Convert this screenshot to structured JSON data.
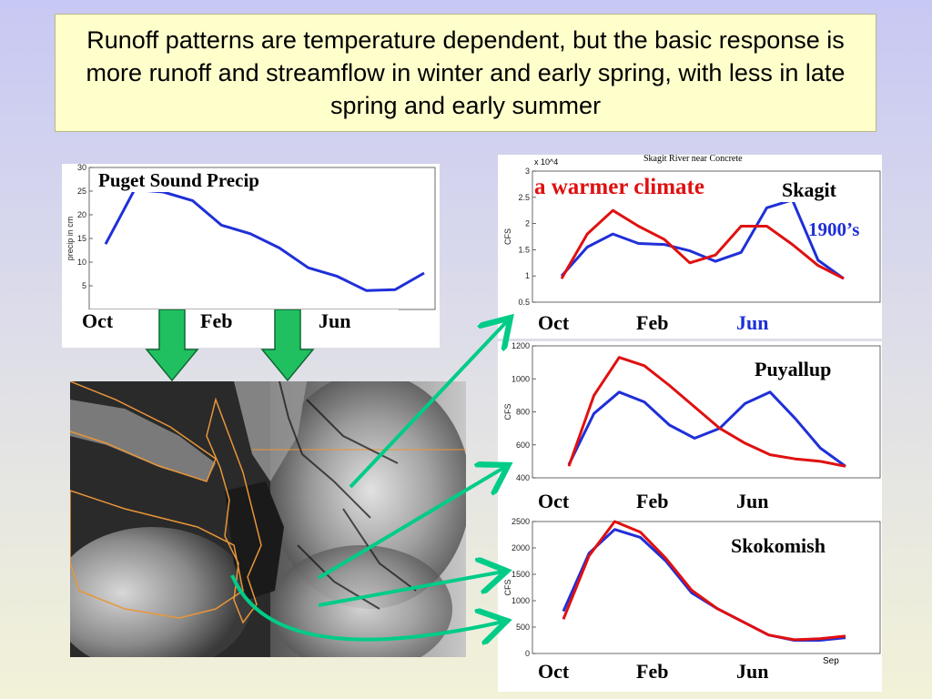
{
  "slide": {
    "title": "Runoff patterns are temperature dependent, but the basic response is more runoff and streamflow in winter and early spring, with less in late spring and early summer"
  },
  "colors": {
    "blue": "#1f2fd8",
    "red": "#e01010",
    "green_arrow": "#00cc88",
    "title_bg": "#ffffcc"
  },
  "chart_data": [
    {
      "type": "line",
      "title": "Puget Sound Precip",
      "ylabel": "precip in cm",
      "ylim": [
        0,
        30
      ],
      "yticks": [
        "5",
        "10",
        "15",
        "20",
        "25",
        "30"
      ],
      "month_labels": [
        "Oct",
        "Feb",
        "Jun"
      ],
      "x": [
        0,
        1,
        2,
        3,
        4,
        5,
        6,
        7,
        8,
        9,
        10,
        11
      ],
      "series": [
        {
          "color": "blue",
          "values": [
            13.8,
            25.3,
            24.8,
            23.0,
            17.8,
            16.0,
            13.0,
            8.8,
            7.0,
            4.0,
            4.2,
            7.7
          ]
        }
      ]
    },
    {
      "type": "line",
      "title": "Skagit River near Concrete",
      "ylabel": "CFS",
      "y_multiplier": "x 10^4",
      "ylim": [
        0.5,
        3
      ],
      "yticks": [
        "0.5",
        "1",
        "1.5",
        "2",
        "2.5",
        "3"
      ],
      "annotation_warmer": "a warmer climate",
      "annotation_1900s": "1900’s",
      "river_label": "Skagit",
      "month_labels": [
        "Oct",
        "Feb",
        "Jun"
      ],
      "x": [
        0,
        1,
        2,
        3,
        4,
        5,
        6,
        7,
        8,
        9,
        10,
        11
      ],
      "series": [
        {
          "color": "blue",
          "name": "1900’s",
          "values": [
            1.0,
            1.55,
            1.8,
            1.62,
            1.6,
            1.48,
            1.28,
            1.45,
            2.3,
            2.45,
            1.3,
            0.95
          ]
        },
        {
          "color": "red",
          "name": "a warmer climate",
          "values": [
            0.95,
            1.8,
            2.25,
            1.95,
            1.7,
            1.25,
            1.4,
            1.95,
            1.95,
            1.6,
            1.2,
            0.95
          ]
        }
      ]
    },
    {
      "type": "line",
      "title": "",
      "river_label": "Puyallup",
      "ylabel": "CFS",
      "ylim": [
        400,
        1200
      ],
      "yticks": [
        "400",
        "600",
        "800",
        "1000",
        "1200"
      ],
      "month_labels": [
        "Oct",
        "Feb",
        "Jun"
      ],
      "x": [
        0,
        1,
        2,
        3,
        4,
        5,
        6,
        7,
        8,
        9,
        10,
        11
      ],
      "series": [
        {
          "color": "blue",
          "values": [
            480,
            790,
            920,
            860,
            720,
            640,
            700,
            850,
            920,
            760,
            580,
            470
          ]
        },
        {
          "color": "red",
          "values": [
            470,
            900,
            1130,
            1080,
            960,
            830,
            700,
            610,
            540,
            515,
            500,
            470
          ]
        }
      ]
    },
    {
      "type": "line",
      "title": "",
      "river_label": "Skokomish",
      "ylabel": "CFS",
      "ylim": [
        0,
        2500
      ],
      "yticks": [
        "0",
        "500",
        "1000",
        "1500",
        "2000",
        "2500"
      ],
      "extra_tick": "Sep",
      "month_labels": [
        "Oct",
        "Feb",
        "Jun"
      ],
      "x": [
        0,
        1,
        2,
        3,
        4,
        5,
        6,
        7,
        8,
        9,
        10,
        11
      ],
      "series": [
        {
          "color": "blue",
          "values": [
            800,
            1900,
            2350,
            2200,
            1750,
            1150,
            850,
            600,
            350,
            250,
            250,
            300
          ]
        },
        {
          "color": "red",
          "values": [
            650,
            1850,
            2500,
            2300,
            1800,
            1200,
            850,
            600,
            350,
            260,
            280,
            330
          ]
        }
      ]
    }
  ]
}
